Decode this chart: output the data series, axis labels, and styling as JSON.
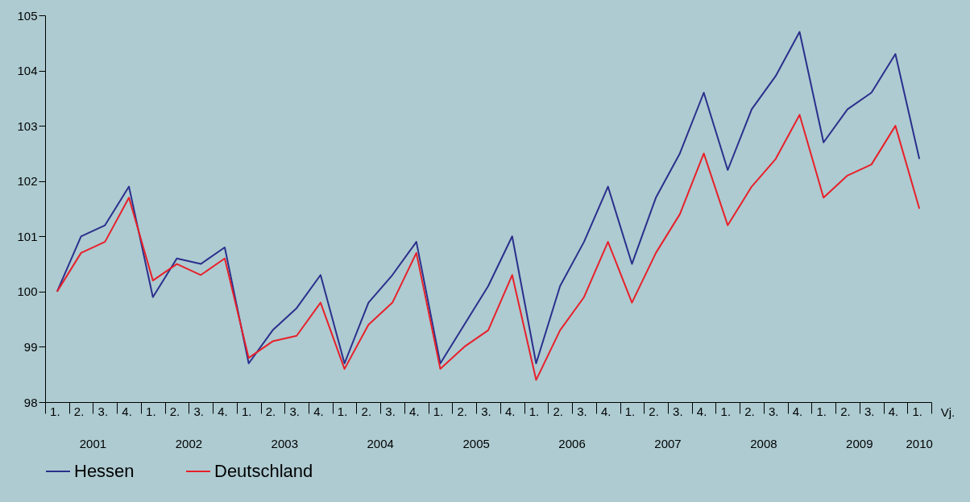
{
  "chart_data": {
    "type": "line",
    "xlabel": "Vj.",
    "categories": [
      "1.",
      "2.",
      "3.",
      "4.",
      "1.",
      "2.",
      "3.",
      "4.",
      "1.",
      "2.",
      "3.",
      "4.",
      "1.",
      "2.",
      "3.",
      "4.",
      "1.",
      "2.",
      "3.",
      "4.",
      "1.",
      "2.",
      "3.",
      "4.",
      "1.",
      "2.",
      "3.",
      "4.",
      "1.",
      "2.",
      "3.",
      "4.",
      "1.",
      "2.",
      "3.",
      "4.",
      "1."
    ],
    "annotations": [
      "2001",
      "2002",
      "2003",
      "2004",
      "2005",
      "2006",
      "2007",
      "2008",
      "2009",
      "2010"
    ],
    "series": [
      {
        "name": "Hessen",
        "color": "#2b2f8c",
        "values": [
          100,
          101.0,
          101.2,
          101.9,
          99.9,
          100.6,
          100.5,
          100.8,
          98.7,
          99.3,
          99.7,
          100.3,
          98.7,
          99.8,
          100.3,
          100.9,
          98.7,
          99.4,
          100.1,
          101.0,
          98.7,
          100.1,
          100.9,
          101.9,
          100.5,
          101.7,
          102.5,
          103.6,
          102.2,
          103.3,
          103.9,
          104.7,
          102.7,
          103.3,
          103.6,
          104.3,
          102.4
        ]
      },
      {
        "name": "Deutschland",
        "color": "#e8202a",
        "values": [
          100,
          100.7,
          100.9,
          101.7,
          100.2,
          100.5,
          100.3,
          100.6,
          98.8,
          99.1,
          99.2,
          99.8,
          98.6,
          99.4,
          99.8,
          100.7,
          98.6,
          99.0,
          99.3,
          100.3,
          98.4,
          99.3,
          99.9,
          100.9,
          99.8,
          100.7,
          101.4,
          102.5,
          101.2,
          101.9,
          102.4,
          103.2,
          101.7,
          102.1,
          102.3,
          103.0,
          101.5
        ]
      }
    ],
    "ylim": [
      98,
      105
    ],
    "yticks": [
      98,
      99,
      100,
      101,
      102,
      103,
      104,
      105
    ],
    "grid": false,
    "legend": "bottom",
    "marker": "none",
    "line_style": "solid"
  }
}
